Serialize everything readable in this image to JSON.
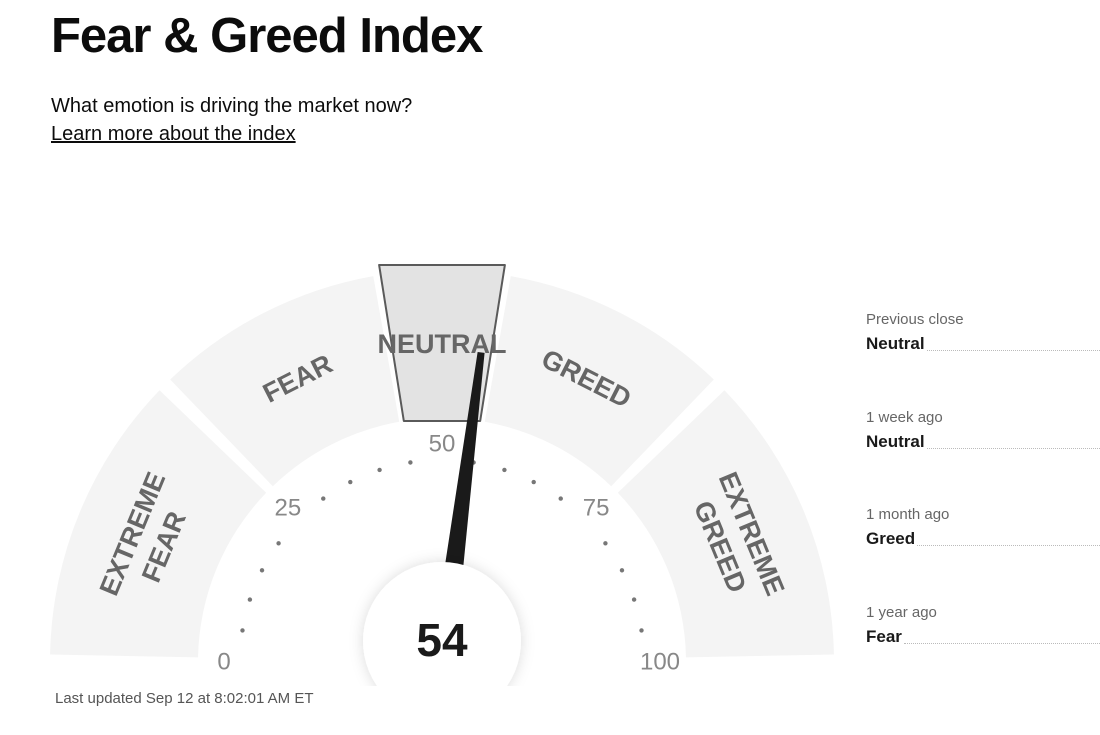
{
  "header": {
    "title": "Fear & Greed Index",
    "subtitle": "What emotion is driving the market now?",
    "learn_more_link": "Learn more about the index"
  },
  "gauge": {
    "score": 54,
    "current_zone": "NEUTRAL",
    "scale": {
      "min": 0,
      "max": 100
    },
    "zones": [
      {
        "id": "extreme-fear",
        "lines": [
          "EXTREME",
          "FEAR"
        ],
        "from": 0,
        "to": 25
      },
      {
        "id": "fear",
        "lines": [
          "FEAR"
        ],
        "from": 25,
        "to": 45
      },
      {
        "id": "neutral",
        "lines": [
          "NEUTRAL"
        ],
        "from": 45,
        "to": 55
      },
      {
        "id": "greed",
        "lines": [
          "GREED"
        ],
        "from": 55,
        "to": 75
      },
      {
        "id": "extreme-greed",
        "lines": [
          "EXTREME",
          "GREED"
        ],
        "from": 75,
        "to": 100
      }
    ],
    "tick_labels": [
      "0",
      "25",
      "50",
      "75",
      "100"
    ],
    "score_display": "54"
  },
  "last_updated": "Last updated Sep 12 at 8:02:01 AM ET",
  "history": [
    {
      "label": "Previous close",
      "value": "Neutral"
    },
    {
      "label": "1 week ago",
      "value": "Neutral"
    },
    {
      "label": "1 month ago",
      "value": "Greed"
    },
    {
      "label": "1 year ago",
      "value": "Fear"
    }
  ],
  "colors": {
    "zone_fill": "#f4f4f4",
    "active_zone_fill": "#e3e3e3",
    "active_zone_stroke": "#5a5a5a",
    "needle": "#1a1a1a",
    "zone_label": "#666666",
    "tick": "#888888"
  }
}
